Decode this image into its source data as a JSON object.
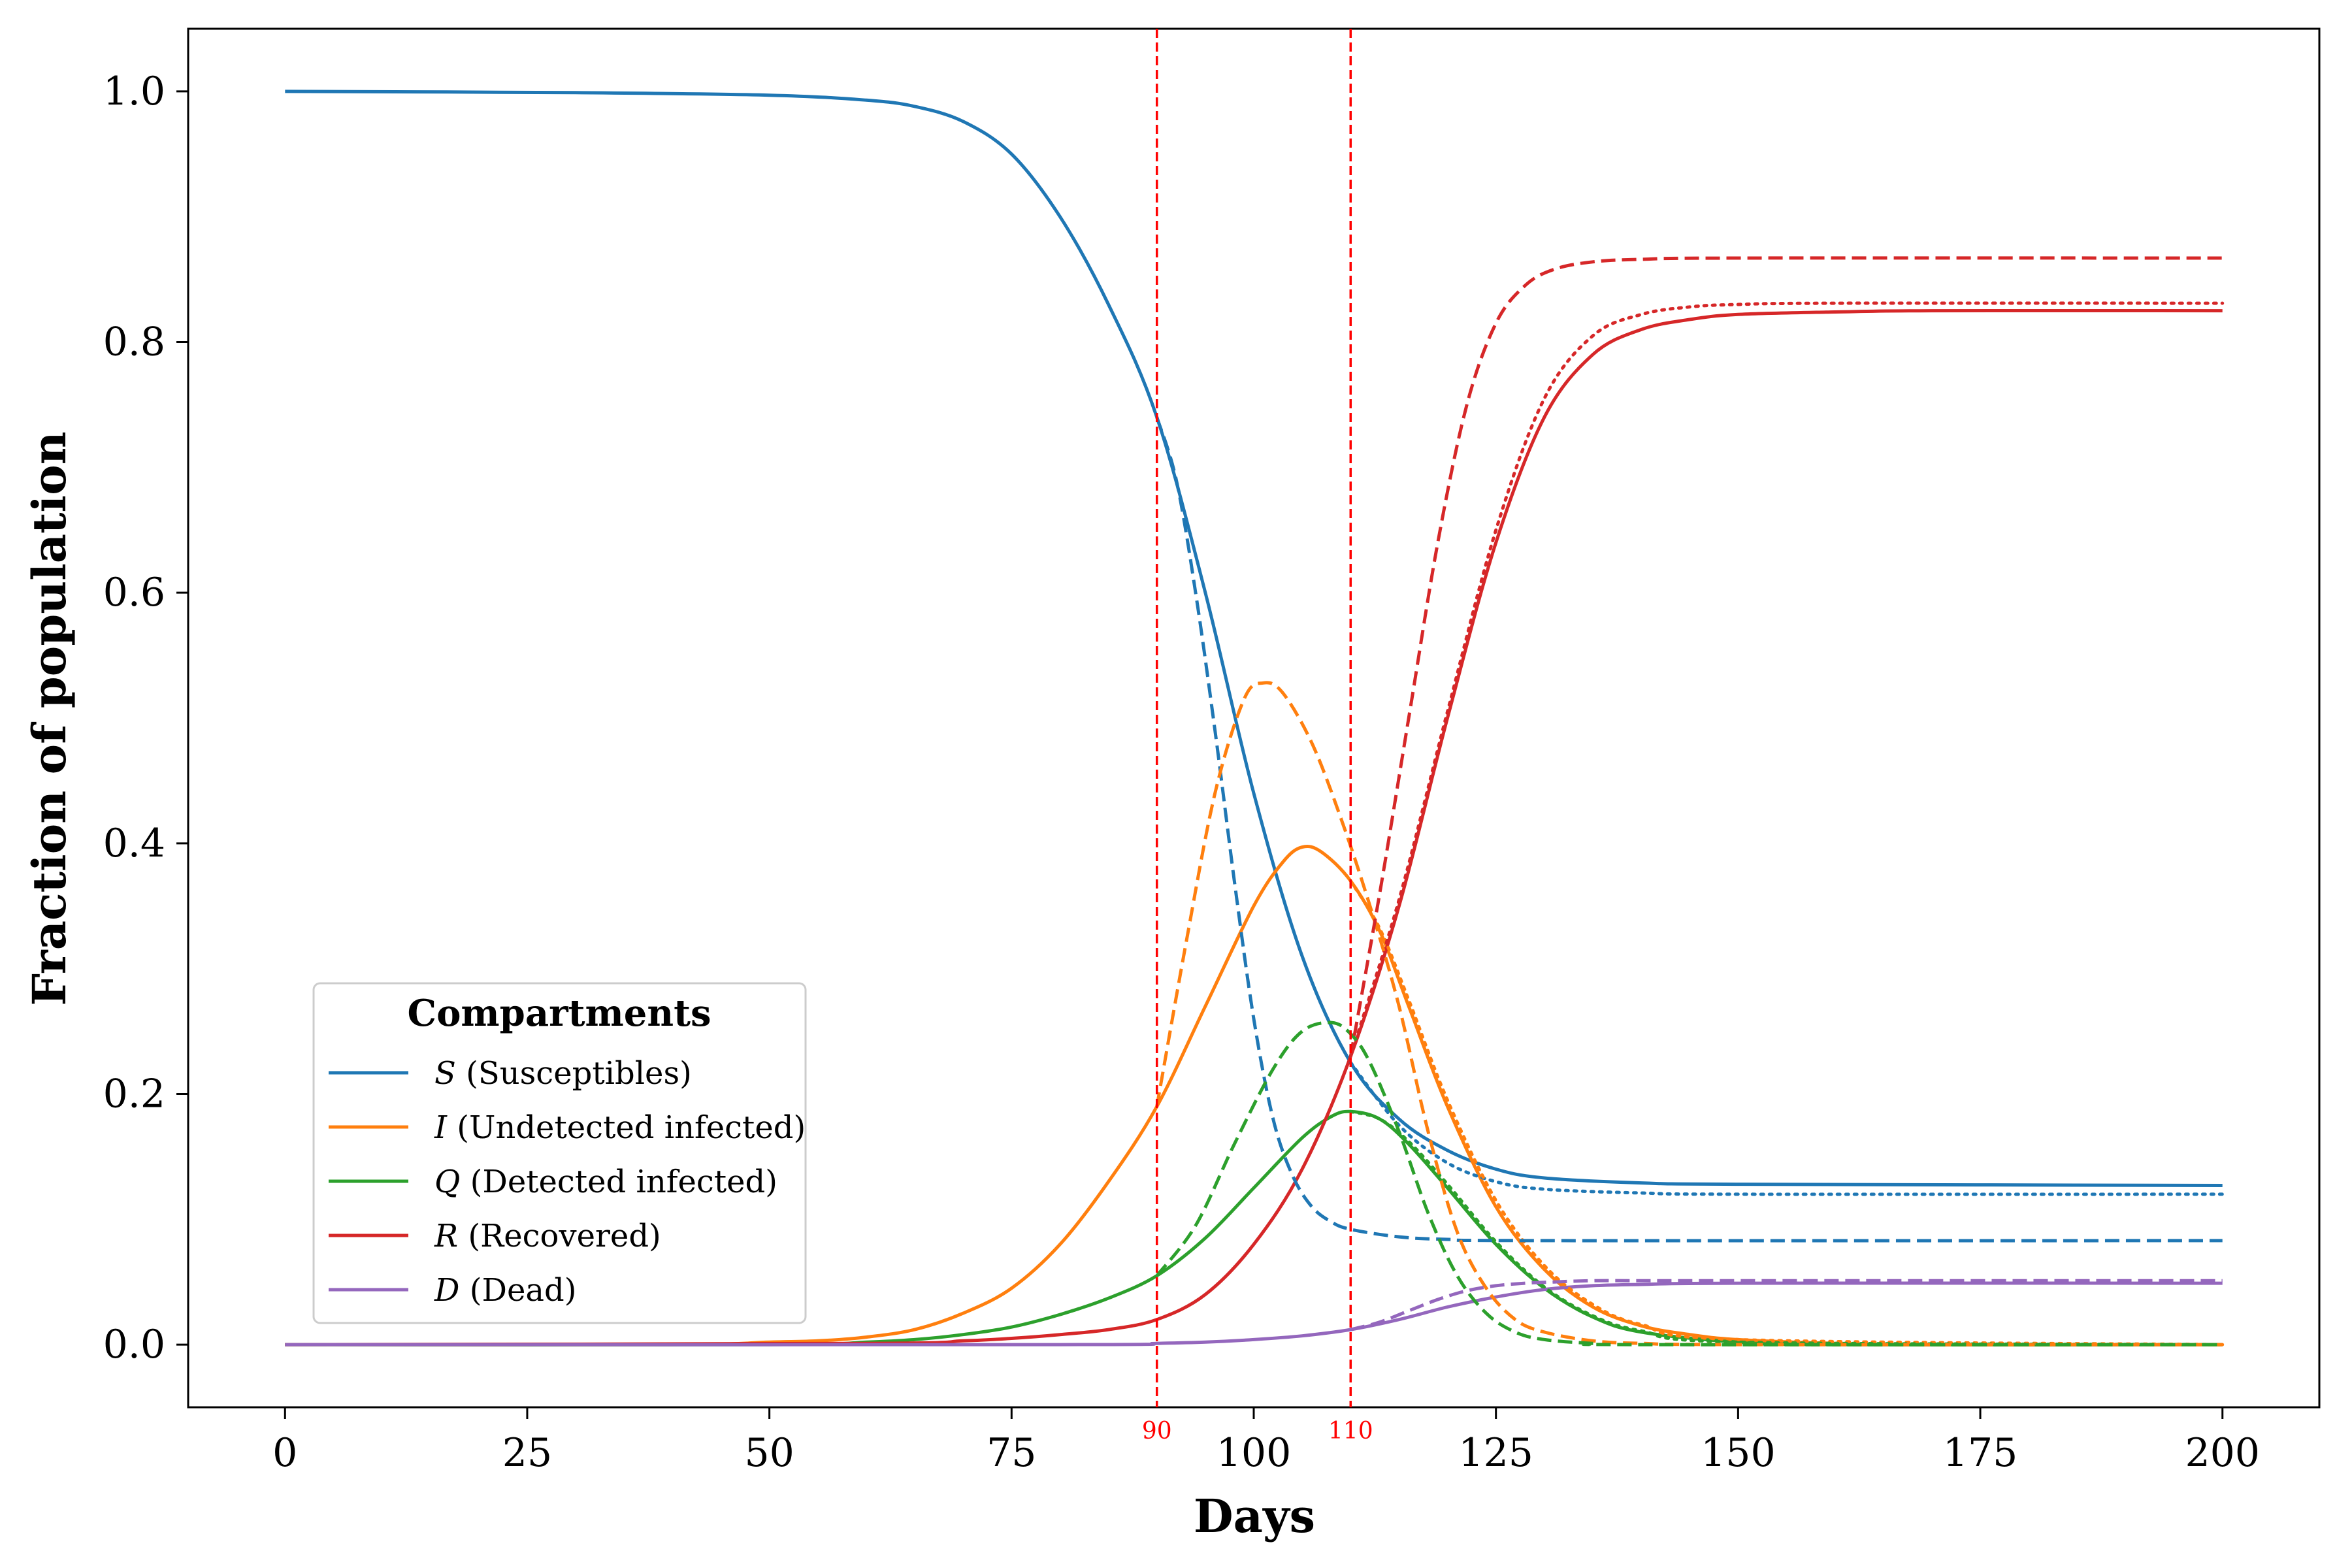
{
  "chart_data": {
    "type": "line",
    "title": "",
    "xlabel": "Days",
    "ylabel": "Fraction of population",
    "xlim": [
      -10,
      210
    ],
    "ylim": [
      -0.05,
      1.05
    ],
    "xticks": [
      0,
      25,
      50,
      75,
      100,
      125,
      150,
      175,
      200
    ],
    "yticks": [
      0.0,
      0.2,
      0.4,
      0.6,
      0.8,
      1.0
    ],
    "xtick_labels": [
      "0",
      "25",
      "50",
      "75",
      "100",
      "125",
      "150",
      "175",
      "200"
    ],
    "ytick_labels": [
      "0.0",
      "0.2",
      "0.4",
      "0.6",
      "0.8",
      "1.0"
    ],
    "grid": false,
    "vertical_lines": [
      {
        "x": 90,
        "label": "90",
        "color": "#ff0000",
        "style": "dashed"
      },
      {
        "x": 110,
        "label": "110",
        "color": "#ff0000",
        "style": "dashed"
      }
    ],
    "legend": {
      "title": "Compartments",
      "position": "lower-left",
      "entries": [
        {
          "symbol": "S",
          "text": "(Susceptibles)",
          "color": "#1f77b4"
        },
        {
          "symbol": "I",
          "text": "(Undetected infected)",
          "color": "#ff7f0e"
        },
        {
          "symbol": "Q",
          "text": "(Detected infected)",
          "color": "#2ca02c"
        },
        {
          "symbol": "R",
          "text": "(Recovered)",
          "color": "#d62728"
        },
        {
          "symbol": "D",
          "text": "(Dead)",
          "color": "#9467bd"
        }
      ]
    },
    "series": [
      {
        "name": "S",
        "style": "solid",
        "color": "#1f77b4",
        "x": [
          0,
          30,
          50,
          60,
          65,
          70,
          75,
          80,
          85,
          90,
          95,
          100,
          105,
          110,
          115,
          120,
          125,
          130,
          140,
          150,
          200
        ],
        "y": [
          1.0,
          0.999,
          0.997,
          0.993,
          0.988,
          0.976,
          0.95,
          0.9,
          0.83,
          0.74,
          0.6,
          0.44,
          0.31,
          0.225,
          0.18,
          0.155,
          0.14,
          0.133,
          0.129,
          0.128,
          0.127
        ]
      },
      {
        "name": "S",
        "style": "dashed",
        "color": "#1f77b4",
        "x": [
          90,
          92,
          94,
          96,
          98,
          100,
          102,
          104,
          106,
          108,
          110,
          115,
          120,
          130,
          200
        ],
        "y": [
          0.74,
          0.69,
          0.6,
          0.49,
          0.37,
          0.26,
          0.18,
          0.135,
          0.11,
          0.098,
          0.092,
          0.086,
          0.084,
          0.083,
          0.083
        ]
      },
      {
        "name": "S",
        "style": "dotted",
        "color": "#1f77b4",
        "x": [
          110,
          115,
          120,
          125,
          130,
          140,
          150,
          200
        ],
        "y": [
          0.225,
          0.175,
          0.145,
          0.13,
          0.124,
          0.121,
          0.12,
          0.12
        ]
      },
      {
        "name": "I",
        "style": "solid",
        "color": "#ff7f0e",
        "x": [
          0,
          40,
          50,
          55,
          60,
          65,
          70,
          75,
          80,
          85,
          90,
          95,
          100,
          103,
          105,
          107,
          110,
          113,
          116,
          120,
          125,
          130,
          135,
          140,
          145,
          150,
          160,
          170,
          200
        ],
        "y": [
          0.0,
          0.0,
          0.002,
          0.003,
          0.006,
          0.012,
          0.025,
          0.045,
          0.08,
          0.13,
          0.19,
          0.27,
          0.35,
          0.385,
          0.397,
          0.393,
          0.37,
          0.33,
          0.27,
          0.19,
          0.11,
          0.06,
          0.03,
          0.015,
          0.008,
          0.004,
          0.001,
          0.0,
          0.0
        ]
      },
      {
        "name": "I",
        "style": "dashed",
        "color": "#ff7f0e",
        "x": [
          90,
          93,
          96,
          99,
          101,
          103,
          106,
          109,
          112,
          115,
          118,
          121,
          124,
          127,
          130,
          135,
          140,
          150,
          200
        ],
        "y": [
          0.19,
          0.32,
          0.44,
          0.515,
          0.528,
          0.52,
          0.48,
          0.42,
          0.35,
          0.27,
          0.17,
          0.09,
          0.045,
          0.02,
          0.01,
          0.003,
          0.001,
          0.0,
          0.0
        ]
      },
      {
        "name": "I",
        "style": "dotted",
        "color": "#ff7f0e",
        "x": [
          110,
          113,
          116,
          120,
          125,
          130,
          135,
          140,
          150,
          200
        ],
        "y": [
          0.37,
          0.332,
          0.275,
          0.195,
          0.115,
          0.063,
          0.032,
          0.016,
          0.004,
          0.0
        ]
      },
      {
        "name": "Q",
        "style": "solid",
        "color": "#2ca02c",
        "x": [
          0,
          50,
          60,
          65,
          70,
          75,
          80,
          85,
          90,
          95,
          100,
          105,
          108,
          110,
          113,
          116,
          120,
          125,
          130,
          135,
          140,
          150,
          160,
          200
        ],
        "y": [
          0.0,
          0.0,
          0.002,
          0.004,
          0.008,
          0.014,
          0.024,
          0.037,
          0.055,
          0.085,
          0.125,
          0.165,
          0.182,
          0.186,
          0.18,
          0.16,
          0.125,
          0.08,
          0.045,
          0.022,
          0.01,
          0.002,
          0.0,
          0.0
        ]
      },
      {
        "name": "Q",
        "style": "dashed",
        "color": "#2ca02c",
        "x": [
          90,
          94,
          98,
          102,
          105,
          108,
          110,
          112,
          115,
          118,
          121,
          124,
          127,
          130,
          135,
          140,
          200
        ],
        "y": [
          0.055,
          0.095,
          0.16,
          0.22,
          0.25,
          0.257,
          0.248,
          0.225,
          0.17,
          0.105,
          0.055,
          0.025,
          0.01,
          0.004,
          0.001,
          0.0,
          0.0
        ]
      },
      {
        "name": "Q",
        "style": "dotted",
        "color": "#2ca02c",
        "x": [
          110,
          113,
          116,
          120,
          125,
          130,
          135,
          140,
          150,
          200
        ],
        "y": [
          0.186,
          0.18,
          0.162,
          0.128,
          0.082,
          0.046,
          0.023,
          0.011,
          0.002,
          0.0
        ]
      },
      {
        "name": "R",
        "style": "solid",
        "color": "#d62728",
        "x": [
          0,
          60,
          70,
          75,
          80,
          85,
          90,
          95,
          100,
          105,
          110,
          115,
          120,
          125,
          130,
          135,
          140,
          145,
          150,
          160,
          170,
          200
        ],
        "y": [
          0.0,
          0.001,
          0.003,
          0.005,
          0.008,
          0.012,
          0.02,
          0.04,
          0.08,
          0.14,
          0.23,
          0.35,
          0.5,
          0.64,
          0.74,
          0.79,
          0.81,
          0.818,
          0.822,
          0.824,
          0.825,
          0.825
        ]
      },
      {
        "name": "R",
        "style": "dashed",
        "color": "#d62728",
        "x": [
          110,
          113,
          116,
          119,
          122,
          125,
          128,
          131,
          135,
          140,
          150,
          200
        ],
        "y": [
          0.23,
          0.36,
          0.5,
          0.64,
          0.75,
          0.815,
          0.845,
          0.858,
          0.864,
          0.866,
          0.867,
          0.867
        ]
      },
      {
        "name": "R",
        "style": "dotted",
        "color": "#d62728",
        "x": [
          110,
          115,
          120,
          125,
          130,
          135,
          140,
          145,
          150,
          160,
          200
        ],
        "y": [
          0.23,
          0.355,
          0.505,
          0.65,
          0.755,
          0.805,
          0.822,
          0.828,
          0.83,
          0.831,
          0.831
        ]
      },
      {
        "name": "D",
        "style": "solid",
        "color": "#9467bd",
        "x": [
          0,
          80,
          90,
          95,
          100,
          105,
          110,
          115,
          120,
          125,
          130,
          135,
          140,
          150,
          200
        ],
        "y": [
          0.0,
          0.0,
          0.001,
          0.002,
          0.004,
          0.007,
          0.012,
          0.02,
          0.03,
          0.038,
          0.044,
          0.047,
          0.048,
          0.049,
          0.049
        ]
      },
      {
        "name": "D",
        "style": "dashed",
        "color": "#9467bd",
        "x": [
          110,
          113,
          116,
          119,
          122,
          125,
          128,
          131,
          135,
          140,
          150,
          200
        ],
        "y": [
          0.012,
          0.018,
          0.027,
          0.036,
          0.043,
          0.047,
          0.049,
          0.05,
          0.051,
          0.051,
          0.051,
          0.051
        ]
      }
    ]
  }
}
